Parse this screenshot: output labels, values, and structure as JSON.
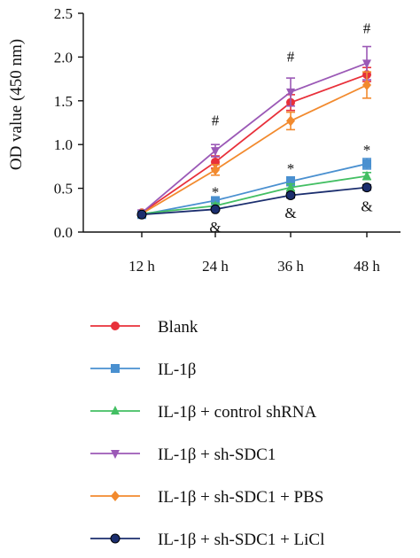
{
  "chart_data": {
    "type": "line",
    "title": "",
    "xlabel": "",
    "ylabel": "OD value (450 nm)",
    "categories": [
      "12 h",
      "24 h",
      "36 h",
      "48 h"
    ],
    "ylim": [
      0,
      2.5
    ],
    "yticks": [
      "0.0",
      "0.5",
      "1.0",
      "1.5",
      "2.0",
      "2.5"
    ],
    "grid": false,
    "legend_position": "bottom",
    "series": [
      {
        "name": "Blank",
        "values": [
          0.22,
          0.8,
          1.48,
          1.8
        ],
        "errors": [
          0.02,
          0.07,
          0.09,
          0.08
        ],
        "color": "#e8303a",
        "marker": "circle"
      },
      {
        "name": "IL-1β",
        "values": [
          0.2,
          0.36,
          0.58,
          0.78
        ],
        "errors": [
          0.02,
          0.04,
          0.05,
          0.06
        ],
        "color": "#4a90d0",
        "marker": "square"
      },
      {
        "name": "IL-1β + control shRNA",
        "values": [
          0.21,
          0.3,
          0.51,
          0.64
        ],
        "errors": [
          0.02,
          0.03,
          0.04,
          0.04
        ],
        "color": "#43bf63",
        "marker": "triangle-up"
      },
      {
        "name": "IL-1β + sh-SDC1",
        "values": [
          0.22,
          0.93,
          1.6,
          1.93
        ],
        "errors": [
          0.02,
          0.07,
          0.16,
          0.19
        ],
        "color": "#9b59b6",
        "marker": "triangle-down"
      },
      {
        "name": "IL-1β + sh-SDC1 + PBS",
        "values": [
          0.21,
          0.71,
          1.27,
          1.68
        ],
        "errors": [
          0.02,
          0.06,
          0.1,
          0.15
        ],
        "color": "#f28a2e",
        "marker": "diamond"
      },
      {
        "name": "IL-1β + sh-SDC1 + LiCl",
        "values": [
          0.2,
          0.26,
          0.42,
          0.51
        ],
        "errors": [
          0.01,
          0.02,
          0.03,
          0.03
        ],
        "color": "#1b2e6e",
        "marker": "circle"
      }
    ],
    "annotations": [
      {
        "text": "#",
        "x": "24 h",
        "y": 1.22
      },
      {
        "text": "#",
        "x": "36 h",
        "y": 1.95
      },
      {
        "text": "#",
        "x": "48 h",
        "y": 2.27
      },
      {
        "text": "*",
        "x": "24 h",
        "y": 0.4
      },
      {
        "text": "*",
        "x": "36 h",
        "y": 0.67
      },
      {
        "text": "*",
        "x": "48 h",
        "y": 0.88
      },
      {
        "text": "&",
        "x": "24 h",
        "y": 0.0
      },
      {
        "text": "&",
        "x": "36 h",
        "y": 0.16
      },
      {
        "text": "&",
        "x": "48 h",
        "y": 0.24
      }
    ]
  }
}
